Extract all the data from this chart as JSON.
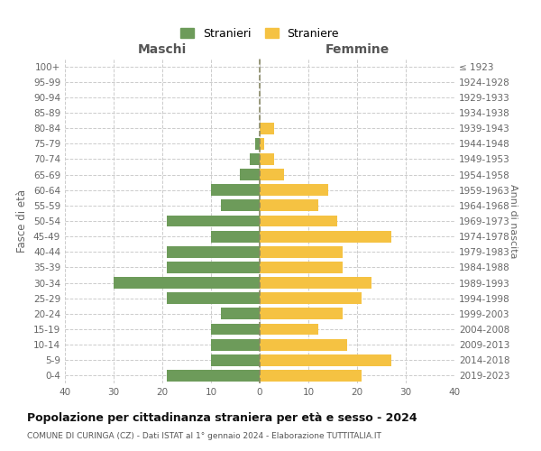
{
  "age_groups": [
    "0-4",
    "5-9",
    "10-14",
    "15-19",
    "20-24",
    "25-29",
    "30-34",
    "35-39",
    "40-44",
    "45-49",
    "50-54",
    "55-59",
    "60-64",
    "65-69",
    "70-74",
    "75-79",
    "80-84",
    "85-89",
    "90-94",
    "95-99",
    "100+"
  ],
  "birth_years": [
    "2019-2023",
    "2014-2018",
    "2009-2013",
    "2004-2008",
    "1999-2003",
    "1994-1998",
    "1989-1993",
    "1984-1988",
    "1979-1983",
    "1974-1978",
    "1969-1973",
    "1964-1968",
    "1959-1963",
    "1954-1958",
    "1949-1953",
    "1944-1948",
    "1939-1943",
    "1934-1938",
    "1929-1933",
    "1924-1928",
    "≤ 1923"
  ],
  "maschi": [
    19,
    10,
    10,
    10,
    8,
    19,
    30,
    19,
    19,
    10,
    19,
    8,
    10,
    4,
    2,
    1,
    0,
    0,
    0,
    0,
    0
  ],
  "femmine": [
    21,
    27,
    18,
    12,
    17,
    21,
    23,
    17,
    17,
    27,
    16,
    12,
    14,
    5,
    3,
    1,
    3,
    0,
    0,
    0,
    0
  ],
  "color_maschi": "#6d9b5a",
  "color_femmine": "#f5c242",
  "title": "Popolazione per cittadinanza straniera per età e sesso - 2024",
  "subtitle": "COMUNE DI CURINGA (CZ) - Dati ISTAT al 1° gennaio 2024 - Elaborazione TUTTITALIA.IT",
  "ylabel_left": "Fasce di età",
  "ylabel_right": "Anni di nascita",
  "xlabel_left": "Maschi",
  "xlabel_right": "Femmine",
  "xlim": 40,
  "legend_stranieri": "Stranieri",
  "legend_straniere": "Straniere",
  "bg_color": "#ffffff",
  "grid_color": "#cccccc"
}
